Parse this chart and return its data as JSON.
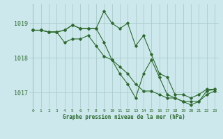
{
  "title": "Graphe pression niveau de la mer (hPa)",
  "bg_color": "#cce8ec",
  "grid_color": "#aacccc",
  "line_color": "#2d6a2d",
  "xlim": [
    -0.5,
    23.5
  ],
  "ylim": [
    1016.55,
    1019.55
  ],
  "yticks": [
    1017,
    1018,
    1019
  ],
  "xticks": [
    0,
    1,
    2,
    3,
    4,
    5,
    6,
    7,
    8,
    9,
    10,
    11,
    12,
    13,
    14,
    15,
    16,
    17,
    18,
    19,
    20,
    21,
    22,
    23
  ],
  "series": [
    [
      1018.8,
      1018.8,
      1018.75,
      1018.75,
      1018.8,
      1018.95,
      1018.85,
      1018.85,
      1018.85,
      1019.35,
      1019.0,
      1018.85,
      1019.0,
      1018.35,
      1018.65,
      1018.1,
      1017.55,
      1017.45,
      1016.95,
      1016.95,
      1016.85,
      1016.95,
      1017.1,
      1017.1
    ],
    [
      1018.8,
      1018.8,
      1018.75,
      1018.75,
      1018.8,
      1018.95,
      1018.85,
      1018.85,
      1018.85,
      1018.45,
      1017.95,
      1017.55,
      1017.25,
      1016.85,
      1017.55,
      1017.95,
      1017.45,
      1016.95,
      1016.85,
      1016.75,
      1016.75,
      1016.75,
      1017.05,
      1017.1
    ],
    [
      1018.8,
      1018.8,
      1018.75,
      1018.75,
      1018.45,
      1018.55,
      1018.55,
      1018.65,
      1018.35,
      1018.05,
      1017.95,
      1017.75,
      1017.55,
      1017.25,
      1017.05,
      1017.05,
      1016.95,
      1016.85,
      1016.85,
      1016.75,
      1016.65,
      1016.75,
      1016.95,
      1017.05
    ]
  ],
  "figsize": [
    3.2,
    2.0
  ],
  "dpi": 100
}
